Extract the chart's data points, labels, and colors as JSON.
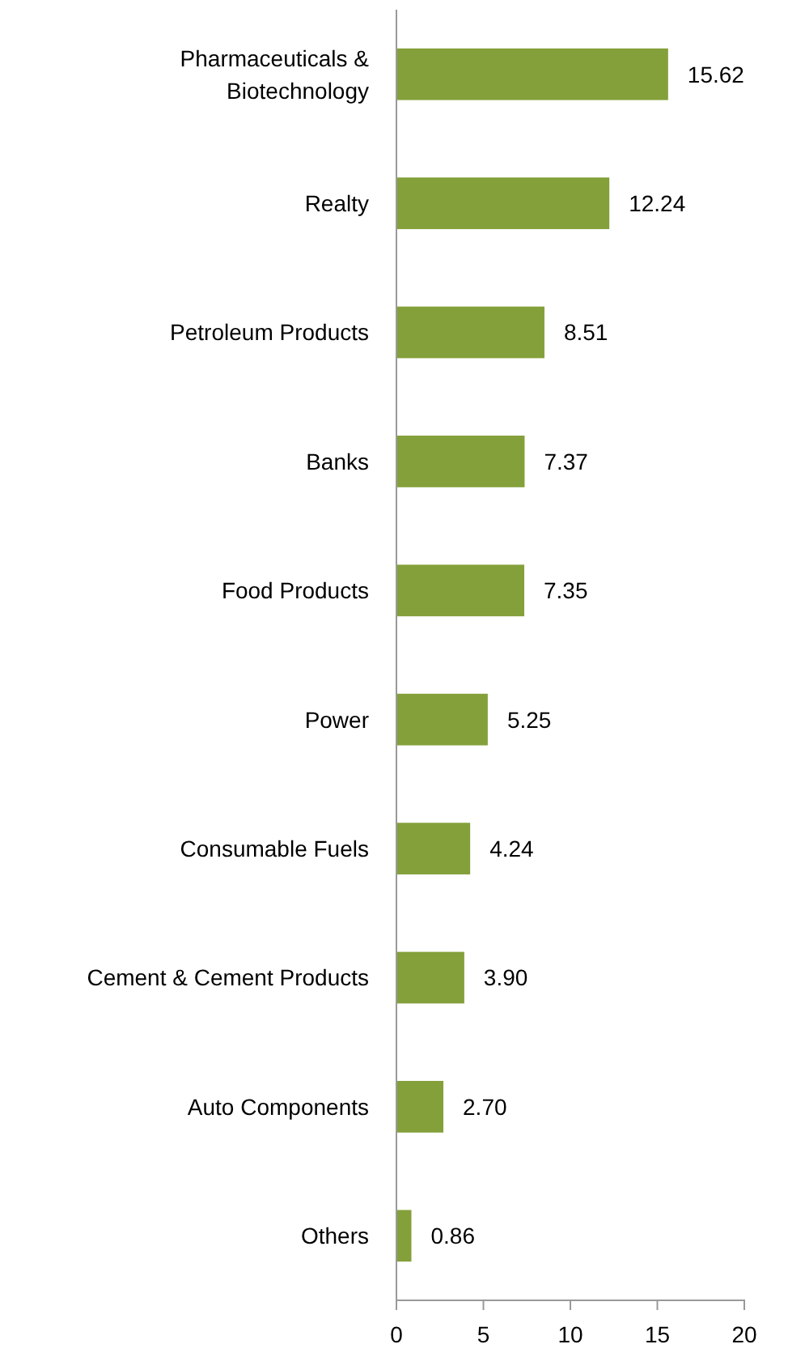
{
  "chart_data": {
    "type": "bar",
    "orientation": "horizontal",
    "categories": [
      "Pharmaceuticals & Biotechnology",
      "Realty",
      "Petroleum Products",
      "Banks",
      "Food Products",
      "Power",
      "Consumable Fuels",
      "Cement & Cement Products",
      "Auto Components",
      "Others"
    ],
    "values": [
      15.62,
      12.24,
      8.51,
      7.37,
      7.35,
      5.25,
      4.24,
      3.9,
      2.7,
      0.86
    ],
    "value_labels": [
      "15.62",
      "12.24",
      "8.51",
      "7.37",
      "7.35",
      "5.25",
      "4.24",
      "3.90",
      "2.70",
      "0.86"
    ],
    "color": "#84a03a",
    "xlim": [
      0,
      20
    ],
    "xticks": [
      0,
      5,
      10,
      15,
      20
    ]
  }
}
